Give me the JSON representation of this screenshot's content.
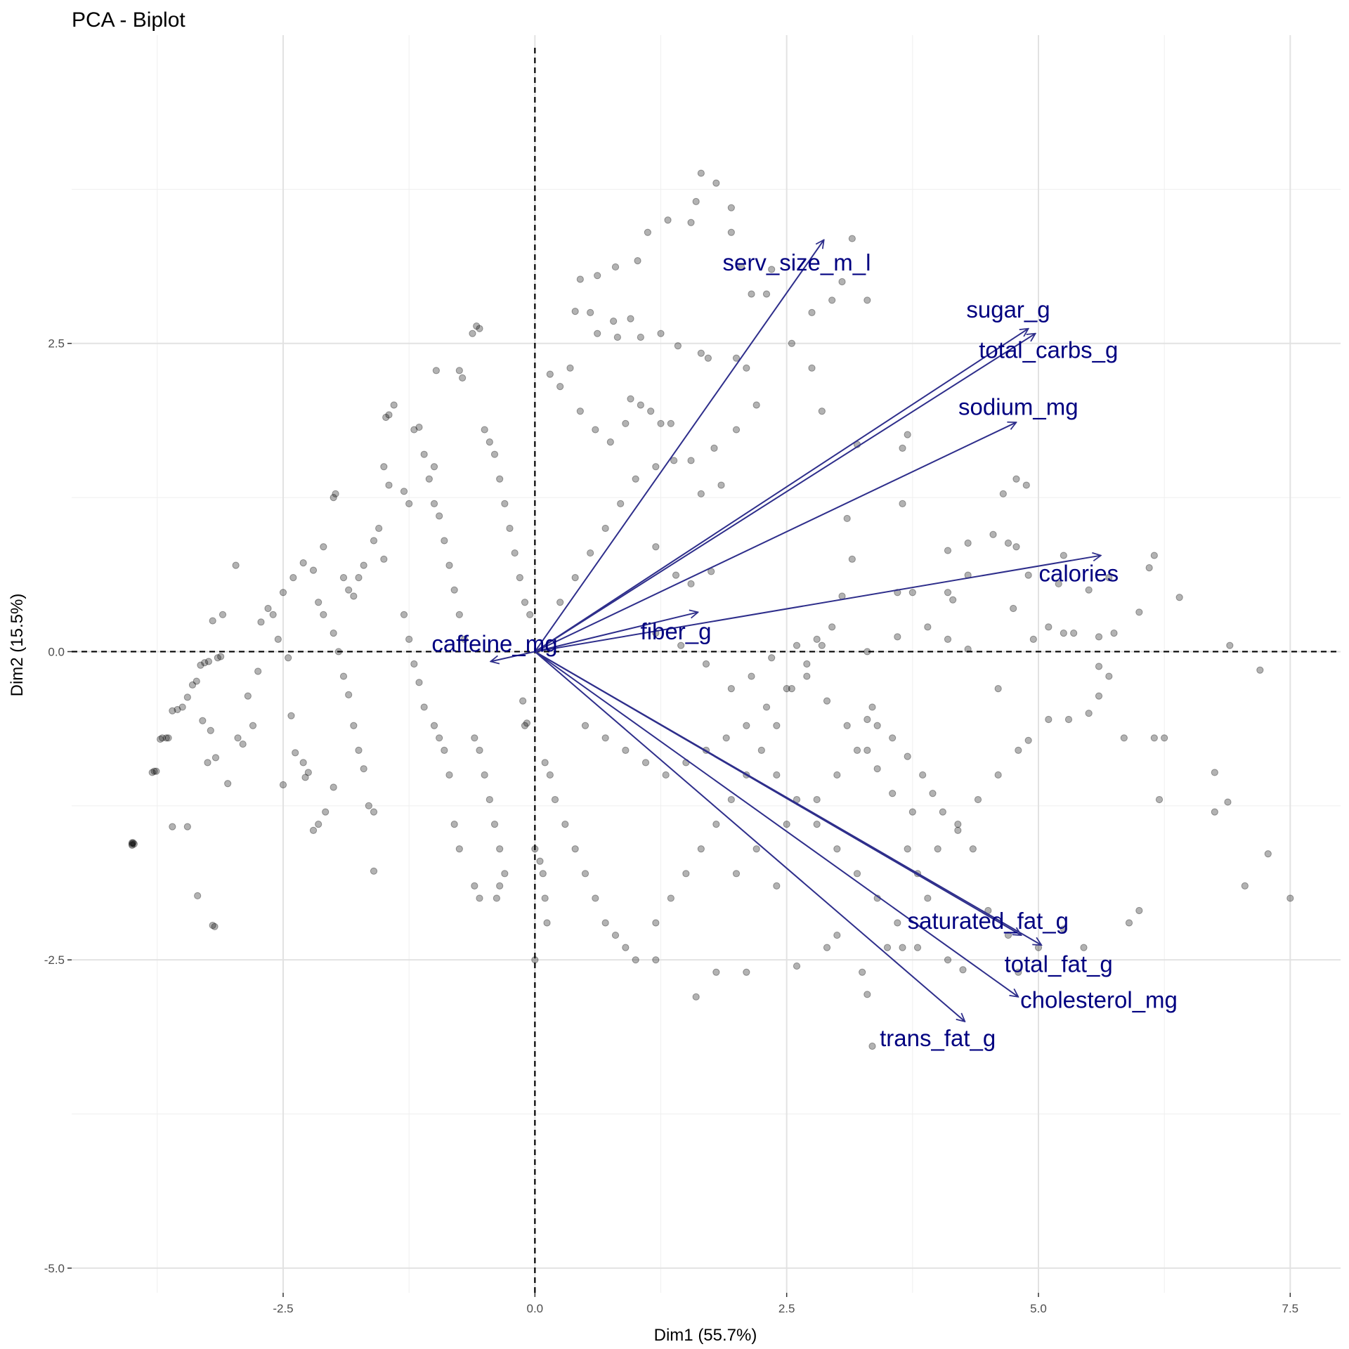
{
  "chart_data": {
    "type": "scatter",
    "title": "PCA - Biplot",
    "xlabel": "Dim1 (55.7%)",
    "ylabel": "Dim2 (15.5%)",
    "xlim": [
      -4.6,
      8.0
    ],
    "ylim": [
      -5.2,
      5.0
    ],
    "x_ticks": [
      -2.5,
      0.0,
      2.5,
      5.0,
      7.5
    ],
    "x_tick_labels": [
      "-2.5",
      "0.0",
      "2.5",
      "5.0",
      "7.5"
    ],
    "y_ticks": [
      -5.0,
      -2.5,
      0.0,
      2.5
    ],
    "y_tick_labels": [
      "-5.0",
      "-2.5",
      "0.0",
      "2.5"
    ],
    "grid": true,
    "reference_lines": {
      "x": 0,
      "y": 0,
      "style": "dashed"
    },
    "arrow_color": "#2e2e8b",
    "label_color": "#000080",
    "point_color": "#000000",
    "point_opacity": 0.3,
    "variables": [
      {
        "name": "serv_size_m_l",
        "x": 2.87,
        "y": 3.34,
        "label_x": 2.6,
        "label_y": 3.14
      },
      {
        "name": "sugar_g",
        "x": 4.9,
        "y": 2.62,
        "label_x": 4.7,
        "label_y": 2.76
      },
      {
        "name": "total_carbs_g",
        "x": 4.97,
        "y": 2.58,
        "label_x": 5.1,
        "label_y": 2.43
      },
      {
        "name": "sodium_mg",
        "x": 4.78,
        "y": 1.86,
        "label_x": 4.8,
        "label_y": 1.97
      },
      {
        "name": "calories",
        "x": 5.62,
        "y": 0.78,
        "label_x": 5.4,
        "label_y": 0.62
      },
      {
        "name": "fiber_g",
        "x": 1.62,
        "y": 0.32,
        "label_x": 1.4,
        "label_y": 0.15
      },
      {
        "name": "caffeine_mg",
        "x": -0.44,
        "y": -0.08,
        "label_x": -0.4,
        "label_y": 0.05
      },
      {
        "name": "saturated_fat_g",
        "x": 4.83,
        "y": -2.3,
        "label_x": 4.5,
        "label_y": -2.2
      },
      {
        "name": "total_fat_g",
        "x": 5.03,
        "y": -2.38,
        "label_x": 5.2,
        "label_y": -2.55
      },
      {
        "name": "cholesterol_mg",
        "x": 4.8,
        "y": -2.8,
        "label_x": 5.6,
        "label_y": -2.84
      },
      {
        "name": "trans_fat_g",
        "x": 4.27,
        "y": -3.0,
        "label_x": 4.0,
        "label_y": -3.15
      }
    ],
    "points": [
      [
        -4.0,
        -1.55
      ],
      [
        -4.0,
        -1.56
      ],
      [
        -4.0,
        -1.57
      ],
      [
        -3.99,
        -1.55
      ],
      [
        -3.98,
        -1.56
      ],
      [
        -3.8,
        -0.98
      ],
      [
        -3.78,
        -0.97
      ],
      [
        -3.76,
        -0.97
      ],
      [
        -3.72,
        -0.71
      ],
      [
        -3.7,
        -0.7
      ],
      [
        -3.66,
        -0.7
      ],
      [
        -3.64,
        -0.7
      ],
      [
        -3.6,
        -0.48
      ],
      [
        -3.55,
        -0.47
      ],
      [
        -3.5,
        -0.45
      ],
      [
        -3.45,
        -0.37
      ],
      [
        -3.4,
        -0.27
      ],
      [
        -3.36,
        -0.24
      ],
      [
        -3.32,
        -0.11
      ],
      [
        -3.28,
        -0.09
      ],
      [
        -3.24,
        -0.08
      ],
      [
        -3.2,
        -2.22
      ],
      [
        -3.18,
        -2.23
      ],
      [
        -3.22,
        -0.64
      ],
      [
        -3.17,
        -0.86
      ],
      [
        -3.15,
        -0.05
      ],
      [
        -3.12,
        -0.04
      ],
      [
        -3.25,
        -0.9
      ],
      [
        -3.35,
        -1.98
      ],
      [
        -3.45,
        -1.42
      ],
      [
        -3.6,
        -1.42
      ],
      [
        -3.3,
        -0.56
      ],
      [
        -3.2,
        0.25
      ],
      [
        -3.1,
        0.3
      ],
      [
        -2.97,
        0.7
      ],
      [
        -3.05,
        -1.07
      ],
      [
        -2.95,
        -0.7
      ],
      [
        -2.9,
        -0.75
      ],
      [
        -2.8,
        -0.6
      ],
      [
        -2.85,
        -0.36
      ],
      [
        -2.75,
        -0.16
      ],
      [
        -2.72,
        0.24
      ],
      [
        -2.65,
        0.35
      ],
      [
        -2.6,
        0.3
      ],
      [
        -2.55,
        0.1
      ],
      [
        -2.5,
        0.48
      ],
      [
        -2.45,
        -0.05
      ],
      [
        -2.42,
        -0.52
      ],
      [
        -2.38,
        -0.82
      ],
      [
        -2.3,
        -0.9
      ],
      [
        -2.25,
        -0.98
      ],
      [
        -2.5,
        -1.08
      ],
      [
        -2.28,
        -1.02
      ],
      [
        -2.2,
        -1.45
      ],
      [
        -2.4,
        0.6
      ],
      [
        -2.3,
        0.72
      ],
      [
        -2.2,
        0.66
      ],
      [
        -2.15,
        0.4
      ],
      [
        -2.1,
        0.3
      ],
      [
        -2.0,
        0.15
      ],
      [
        -1.95,
        0.0
      ],
      [
        -1.9,
        -0.2
      ],
      [
        -1.85,
        -0.35
      ],
      [
        -1.8,
        -0.6
      ],
      [
        -1.75,
        -0.8
      ],
      [
        -1.7,
        -0.95
      ],
      [
        -1.65,
        -1.25
      ],
      [
        -1.6,
        -1.3
      ],
      [
        -1.6,
        -1.78
      ],
      [
        -2.08,
        -1.3
      ],
      [
        -2.15,
        -1.4
      ],
      [
        -2.0,
        -1.1
      ],
      [
        -2.1,
        0.85
      ],
      [
        -2.0,
        1.25
      ],
      [
        -1.98,
        1.28
      ],
      [
        -1.9,
        0.6
      ],
      [
        -1.85,
        0.5
      ],
      [
        -1.8,
        0.45
      ],
      [
        -1.75,
        0.6
      ],
      [
        -1.7,
        0.7
      ],
      [
        -1.6,
        0.9
      ],
      [
        -1.55,
        1.0
      ],
      [
        -1.5,
        0.75
      ],
      [
        -1.45,
        1.35
      ],
      [
        -1.5,
        1.5
      ],
      [
        -1.48,
        1.9
      ],
      [
        -1.45,
        1.92
      ],
      [
        -1.4,
        2.0
      ],
      [
        -1.3,
        0.3
      ],
      [
        -1.25,
        0.1
      ],
      [
        -1.2,
        -0.1
      ],
      [
        -1.15,
        -0.25
      ],
      [
        -1.1,
        -0.45
      ],
      [
        -1.0,
        -0.6
      ],
      [
        -0.95,
        -0.7
      ],
      [
        -0.9,
        -0.8
      ],
      [
        -0.85,
        -1.0
      ],
      [
        -0.8,
        -1.4
      ],
      [
        -0.75,
        -1.6
      ],
      [
        -1.2,
        1.8
      ],
      [
        -1.15,
        1.82
      ],
      [
        -1.1,
        1.6
      ],
      [
        -1.05,
        1.4
      ],
      [
        -1.0,
        1.2
      ],
      [
        -0.95,
        1.1
      ],
      [
        -0.9,
        0.9
      ],
      [
        -0.85,
        0.7
      ],
      [
        -0.8,
        0.5
      ],
      [
        -0.75,
        0.3
      ],
      [
        -0.7,
        0.1
      ],
      [
        -1.3,
        1.3
      ],
      [
        -1.25,
        1.2
      ],
      [
        -1.0,
        1.5
      ],
      [
        -0.98,
        2.28
      ],
      [
        -0.75,
        2.28
      ],
      [
        -0.72,
        2.22
      ],
      [
        -0.62,
        2.58
      ],
      [
        -0.58,
        2.64
      ],
      [
        -0.55,
        2.62
      ],
      [
        -0.5,
        1.8
      ],
      [
        -0.45,
        1.7
      ],
      [
        -0.4,
        1.6
      ],
      [
        -0.35,
        1.4
      ],
      [
        -0.3,
        1.2
      ],
      [
        -0.25,
        1.0
      ],
      [
        -0.2,
        0.8
      ],
      [
        -0.15,
        0.6
      ],
      [
        -0.1,
        0.4
      ],
      [
        -0.05,
        0.3
      ],
      [
        -0.6,
        -0.7
      ],
      [
        -0.55,
        -0.8
      ],
      [
        -0.5,
        -1.0
      ],
      [
        -0.45,
        -1.2
      ],
      [
        -0.4,
        -1.4
      ],
      [
        -0.35,
        -1.6
      ],
      [
        -0.3,
        -1.8
      ],
      [
        -0.6,
        -1.9
      ],
      [
        -0.55,
        -2.0
      ],
      [
        -0.38,
        -2.0
      ],
      [
        -0.35,
        -1.9
      ],
      [
        0.0,
        -1.6
      ],
      [
        0.05,
        -1.7
      ],
      [
        0.08,
        -1.8
      ],
      [
        0.1,
        -2.0
      ],
      [
        0.12,
        -2.2
      ],
      [
        0.0,
        -2.5
      ],
      [
        -0.1,
        -0.6
      ],
      [
        -0.08,
        -0.58
      ],
      [
        -0.12,
        -0.4
      ],
      [
        0.1,
        -0.9
      ],
      [
        0.15,
        -1.0
      ],
      [
        0.2,
        -1.2
      ],
      [
        0.3,
        -1.4
      ],
      [
        0.4,
        -1.6
      ],
      [
        0.5,
        -1.8
      ],
      [
        0.6,
        -2.0
      ],
      [
        0.7,
        -2.2
      ],
      [
        0.8,
        -2.3
      ],
      [
        0.9,
        -2.4
      ],
      [
        1.0,
        -2.5
      ],
      [
        1.2,
        -2.5
      ],
      [
        1.6,
        -2.8
      ],
      [
        1.8,
        -2.6
      ],
      [
        2.1,
        -2.6
      ],
      [
        2.6,
        -2.55
      ],
      [
        2.9,
        -2.4
      ],
      [
        3.0,
        -2.3
      ],
      [
        3.25,
        -2.6
      ],
      [
        3.3,
        -2.78
      ],
      [
        3.35,
        -3.2
      ],
      [
        3.5,
        -2.4
      ],
      [
        3.65,
        -2.4
      ],
      [
        3.8,
        -2.4
      ],
      [
        4.1,
        -2.5
      ],
      [
        4.25,
        -2.58
      ],
      [
        4.5,
        -2.1
      ],
      [
        4.7,
        -2.3
      ],
      [
        4.8,
        -2.6
      ],
      [
        5.0,
        -2.4
      ],
      [
        5.25,
        -2.25
      ],
      [
        5.45,
        -2.4
      ],
      [
        5.9,
        -2.2
      ],
      [
        6.0,
        -2.1
      ],
      [
        6.2,
        -1.2
      ],
      [
        6.75,
        -0.98
      ],
      [
        6.88,
        -1.22
      ],
      [
        6.75,
        -1.3
      ],
      [
        7.05,
        -1.9
      ],
      [
        7.28,
        -1.64
      ],
      [
        7.5,
        -2.0
      ],
      [
        7.2,
        -0.15
      ],
      [
        6.9,
        0.05
      ],
      [
        6.25,
        -0.7
      ],
      [
        6.15,
        -0.7
      ],
      [
        5.85,
        -0.7
      ],
      [
        5.75,
        0.15
      ],
      [
        5.6,
        0.12
      ],
      [
        5.6,
        -0.12
      ],
      [
        5.7,
        -0.2
      ],
      [
        5.6,
        -0.36
      ],
      [
        5.5,
        -0.5
      ],
      [
        5.3,
        -0.55
      ],
      [
        5.1,
        -0.55
      ],
      [
        4.9,
        -0.72
      ],
      [
        4.95,
        0.1
      ],
      [
        5.1,
        0.2
      ],
      [
        5.25,
        0.15
      ],
      [
        5.35,
        0.15
      ],
      [
        5.2,
        0.55
      ],
      [
        5.5,
        0.5
      ],
      [
        5.7,
        0.6
      ],
      [
        6.0,
        0.32
      ],
      [
        6.1,
        0.68
      ],
      [
        6.15,
        0.78
      ],
      [
        6.4,
        0.44
      ],
      [
        5.25,
        0.78
      ],
      [
        4.9,
        0.62
      ],
      [
        4.78,
        0.85
      ],
      [
        4.7,
        0.88
      ],
      [
        4.55,
        0.95
      ],
      [
        4.78,
        1.4
      ],
      [
        4.88,
        1.35
      ],
      [
        4.65,
        1.28
      ],
      [
        4.3,
        0.88
      ],
      [
        4.1,
        0.82
      ],
      [
        4.1,
        0.48
      ],
      [
        4.15,
        0.42
      ],
      [
        4.3,
        0.62
      ],
      [
        4.75,
        0.35
      ],
      [
        4.3,
        0.02
      ],
      [
        4.1,
        0.1
      ],
      [
        3.9,
        0.2
      ],
      [
        3.75,
        0.48
      ],
      [
        3.6,
        0.48
      ],
      [
        3.65,
        1.2
      ],
      [
        3.65,
        1.65
      ],
      [
        3.7,
        1.76
      ],
      [
        3.2,
        1.68
      ],
      [
        3.1,
        1.08
      ],
      [
        3.15,
        0.75
      ],
      [
        3.05,
        0.45
      ],
      [
        2.95,
        0.2
      ],
      [
        2.85,
        0.05
      ],
      [
        2.7,
        -0.1
      ],
      [
        2.55,
        -0.3
      ],
      [
        2.4,
        -0.6
      ],
      [
        2.25,
        -0.8
      ],
      [
        2.1,
        -1.0
      ],
      [
        1.95,
        -1.2
      ],
      [
        1.8,
        -1.4
      ],
      [
        1.65,
        -1.6
      ],
      [
        1.5,
        -1.8
      ],
      [
        1.35,
        -2.0
      ],
      [
        1.2,
        -2.2
      ],
      [
        2.0,
        -1.8
      ],
      [
        2.2,
        -1.6
      ],
      [
        2.4,
        -1.9
      ],
      [
        2.5,
        -1.4
      ],
      [
        2.8,
        -1.2
      ],
      [
        3.0,
        -1.0
      ],
      [
        3.2,
        -0.8
      ],
      [
        3.4,
        -0.6
      ],
      [
        3.55,
        -0.7
      ],
      [
        3.7,
        -0.85
      ],
      [
        3.85,
        -1.0
      ],
      [
        3.95,
        -1.15
      ],
      [
        4.05,
        -1.3
      ],
      [
        4.2,
        -1.45
      ],
      [
        4.35,
        -1.6
      ],
      [
        3.75,
        -1.3
      ],
      [
        3.55,
        -1.15
      ],
      [
        3.4,
        -0.95
      ],
      [
        3.3,
        -0.55
      ],
      [
        3.35,
        -0.45
      ],
      [
        2.85,
        1.95
      ],
      [
        2.75,
        2.3
      ],
      [
        2.55,
        2.5
      ],
      [
        2.75,
        2.75
      ],
      [
        2.95,
        2.85
      ],
      [
        3.15,
        3.35
      ],
      [
        3.3,
        2.85
      ],
      [
        3.05,
        3.0
      ],
      [
        2.3,
        2.9
      ],
      [
        2.15,
        2.9
      ],
      [
        2.35,
        3.1
      ],
      [
        2.05,
        3.12
      ],
      [
        1.95,
        3.4
      ],
      [
        1.95,
        3.6
      ],
      [
        1.8,
        3.8
      ],
      [
        1.65,
        3.88
      ],
      [
        1.6,
        3.65
      ],
      [
        1.55,
        3.48
      ],
      [
        1.32,
        3.5
      ],
      [
        1.12,
        3.4
      ],
      [
        1.02,
        3.17
      ],
      [
        0.8,
        3.12
      ],
      [
        0.62,
        3.05
      ],
      [
        0.45,
        3.02
      ],
      [
        0.4,
        2.76
      ],
      [
        0.55,
        2.75
      ],
      [
        0.62,
        2.58
      ],
      [
        0.78,
        2.68
      ],
      [
        0.82,
        2.55
      ],
      [
        0.95,
        2.7
      ],
      [
        1.05,
        2.55
      ],
      [
        1.25,
        2.58
      ],
      [
        1.42,
        2.48
      ],
      [
        1.65,
        2.42
      ],
      [
        1.72,
        2.38
      ],
      [
        2.0,
        2.38
      ],
      [
        2.1,
        2.3
      ],
      [
        2.2,
        2.0
      ],
      [
        2.0,
        1.8
      ],
      [
        1.78,
        1.65
      ],
      [
        1.55,
        1.55
      ],
      [
        1.38,
        1.55
      ],
      [
        1.2,
        1.5
      ],
      [
        1.0,
        1.4
      ],
      [
        0.85,
        1.2
      ],
      [
        0.7,
        1.0
      ],
      [
        0.55,
        0.8
      ],
      [
        0.4,
        0.6
      ],
      [
        0.25,
        0.4
      ],
      [
        1.2,
        0.85
      ],
      [
        1.4,
        0.62
      ],
      [
        1.55,
        0.55
      ],
      [
        1.75,
        0.65
      ],
      [
        1.85,
        1.35
      ],
      [
        1.65,
        1.28
      ],
      [
        0.95,
        2.05
      ],
      [
        1.05,
        2.0
      ],
      [
        1.15,
        1.95
      ],
      [
        1.25,
        1.85
      ],
      [
        1.35,
        1.85
      ],
      [
        0.15,
        2.25
      ],
      [
        0.35,
        2.3
      ],
      [
        0.25,
        2.15
      ],
      [
        0.45,
        1.95
      ],
      [
        0.6,
        1.8
      ],
      [
        0.75,
        1.7
      ],
      [
        0.9,
        1.85
      ],
      [
        0.5,
        -0.6
      ],
      [
        0.7,
        -0.7
      ],
      [
        0.9,
        -0.8
      ],
      [
        1.1,
        -0.9
      ],
      [
        1.3,
        -1.0
      ],
      [
        1.5,
        -0.9
      ],
      [
        1.7,
        -0.8
      ],
      [
        1.9,
        -0.7
      ],
      [
        2.1,
        -0.6
      ],
      [
        2.3,
        -0.45
      ],
      [
        2.5,
        -0.3
      ],
      [
        2.7,
        -0.2
      ],
      [
        2.9,
        -0.4
      ],
      [
        3.1,
        -0.6
      ],
      [
        3.3,
        -0.8
      ],
      [
        2.4,
        -1.0
      ],
      [
        2.6,
        -1.2
      ],
      [
        2.8,
        -1.4
      ],
      [
        3.0,
        -1.6
      ],
      [
        3.2,
        -1.8
      ],
      [
        3.4,
        -2.0
      ],
      [
        3.6,
        -2.2
      ],
      [
        3.8,
        -1.8
      ],
      [
        4.0,
        -1.6
      ],
      [
        4.2,
        -1.4
      ],
      [
        4.4,
        -1.2
      ],
      [
        4.6,
        -1.0
      ],
      [
        4.8,
        -0.8
      ],
      [
        3.9,
        -2.0
      ],
      [
        3.7,
        -1.6
      ],
      [
        1.2,
        0.15
      ],
      [
        1.45,
        0.05
      ],
      [
        1.7,
        -0.1
      ],
      [
        1.95,
        -0.3
      ],
      [
        2.15,
        -0.2
      ],
      [
        2.35,
        -0.05
      ],
      [
        2.6,
        0.05
      ],
      [
        2.8,
        0.1
      ],
      [
        3.6,
        0.12
      ],
      [
        3.3,
        0.0
      ],
      [
        4.6,
        -0.3
      ]
    ]
  }
}
